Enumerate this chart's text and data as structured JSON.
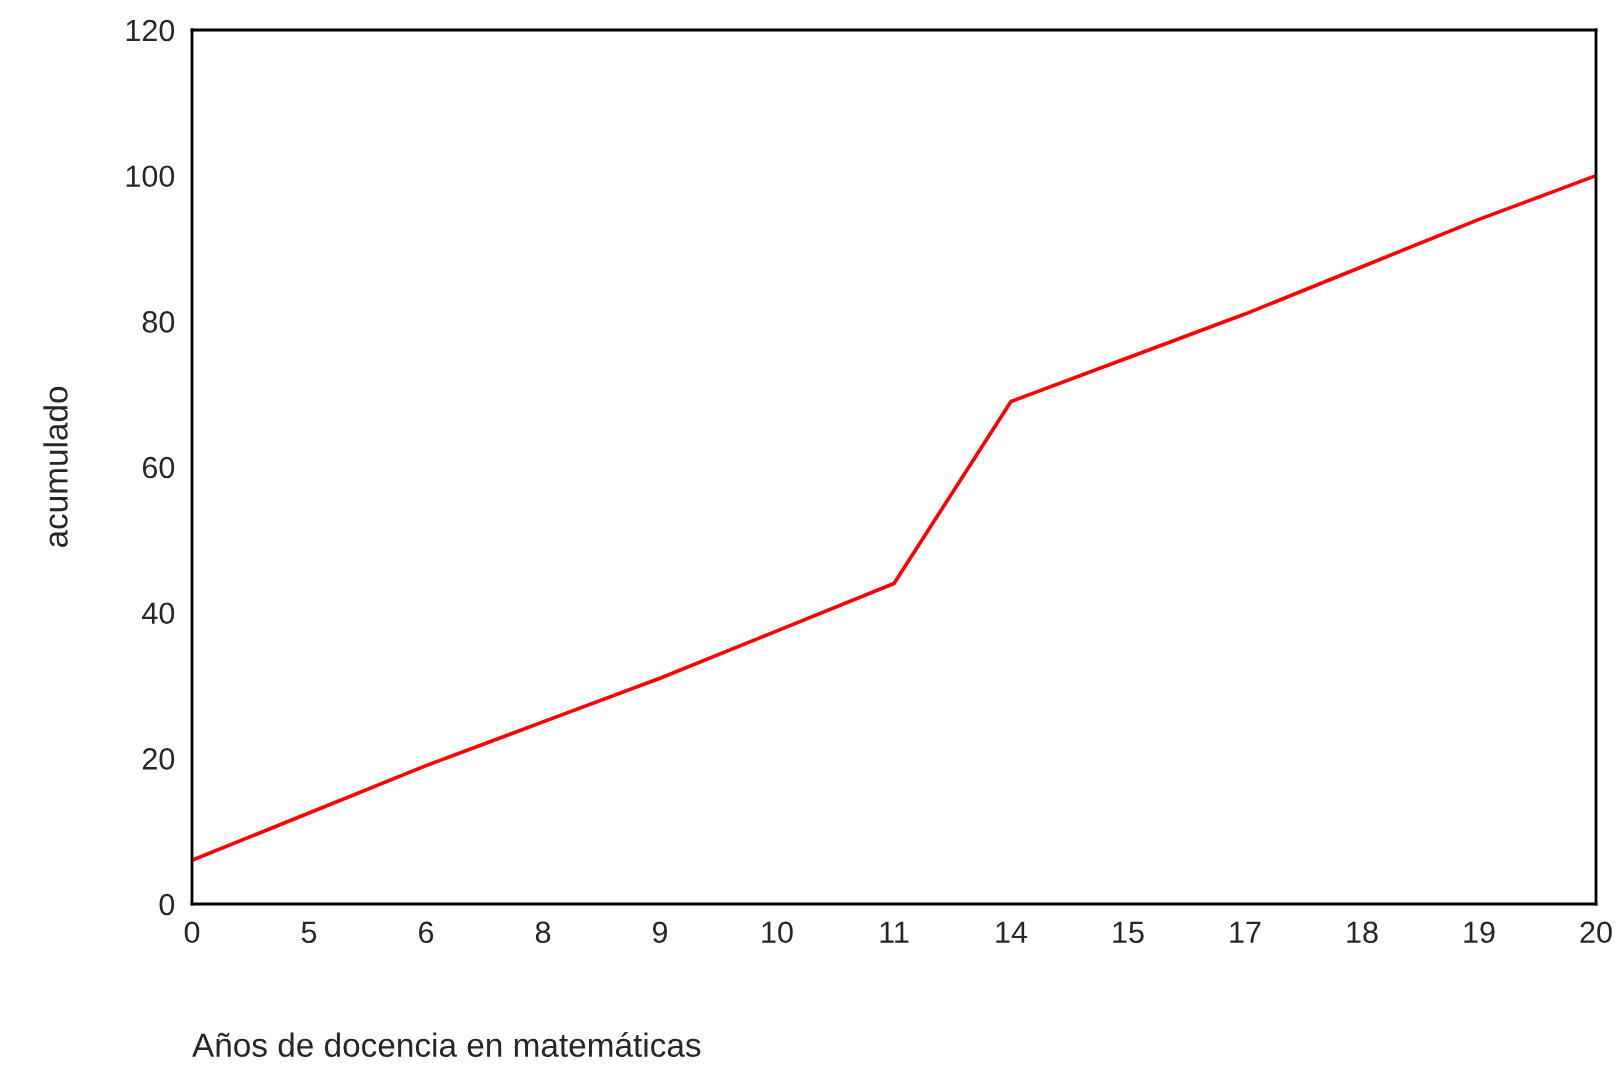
{
  "chart_data": {
    "type": "line",
    "xlabel": "Años de docencia en matemáticas",
    "ylabel": "acumulado",
    "categories": [
      "0",
      "5",
      "6",
      "8",
      "9",
      "10",
      "11",
      "14",
      "15",
      "17",
      "18",
      "19",
      "20"
    ],
    "series": [
      {
        "color": "#ff0000",
        "values": [
          6,
          12.5,
          19,
          25,
          31,
          37.5,
          44,
          69,
          75,
          81,
          87.5,
          94,
          100
        ]
      }
    ],
    "ylim": [
      0,
      120
    ],
    "yticks": [
      0,
      20,
      40,
      60,
      80,
      100,
      120
    ],
    "grid": false,
    "marker": "none",
    "line_style": "solid"
  }
}
